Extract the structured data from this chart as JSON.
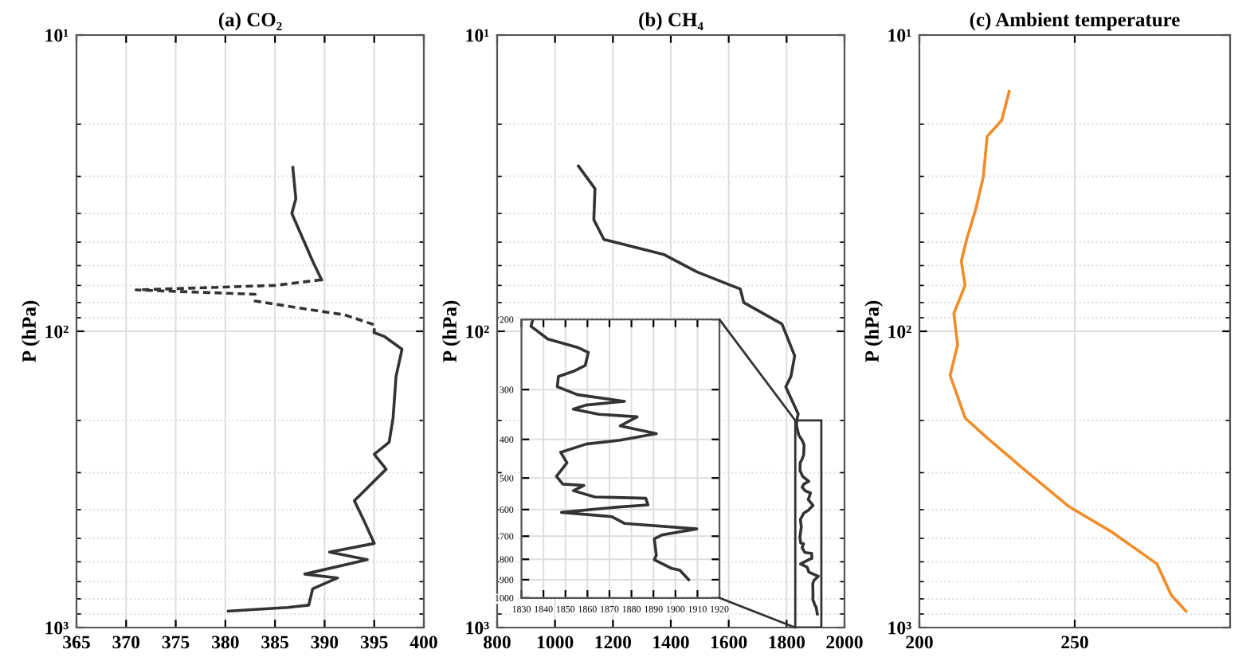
{
  "chart_data": [
    {
      "type": "line",
      "title": "(a) CO₂",
      "ylabel": "P (hPa)",
      "log": "y",
      "grid": true,
      "xlim": [
        365,
        400
      ],
      "xticks": [
        365,
        370,
        375,
        380,
        385,
        390,
        395,
        400
      ],
      "ylim": [
        1000,
        10
      ],
      "yticks": [
        {
          "value": 10,
          "label": "10¹"
        },
        {
          "value": 100,
          "label": "10²"
        },
        {
          "value": 1000,
          "label": "10³"
        }
      ],
      "series": [
        {
          "color": "#333333",
          "line_style": "solid",
          "x": [
            386.8,
            387.1,
            386.7,
            388.8,
            389.7
          ],
          "values": [
            28,
            35.7,
            40,
            58,
            67
          ]
        },
        {
          "color": "#333333",
          "line_style": "dashed",
          "x": [
            389.7,
            385,
            371,
            383,
            383,
            388,
            392,
            395,
            395
          ],
          "values": [
            67,
            70,
            72.5,
            75,
            79,
            84,
            88,
            95,
            101
          ]
        },
        {
          "color": "#333333",
          "line_style": "solid",
          "x": [
            395,
            396,
            397.8,
            397.2,
            396.9,
            396.5,
            395,
            396.2,
            393,
            394,
            395,
            390.5,
            394.3,
            388,
            391.3,
            388.8,
            388.4,
            386.3,
            380.3
          ],
          "values": [
            101,
            104,
            115,
            142,
            196,
            237,
            260,
            292,
            373,
            438,
            520,
            556,
            590,
            660,
            680,
            740,
            840,
            855,
            880
          ]
        }
      ]
    },
    {
      "type": "line",
      "title": "(b) CH₄",
      "ylabel": "P (hPa)",
      "log": "y",
      "grid": true,
      "xlim": [
        800,
        2000
      ],
      "xticks": [
        800,
        1000,
        1200,
        1400,
        1600,
        1800,
        2000
      ],
      "ylim": [
        1000,
        10
      ],
      "yticks": [
        {
          "value": 10,
          "label": "10¹"
        },
        {
          "value": 100,
          "label": "10²"
        },
        {
          "value": 1000,
          "label": "10³"
        }
      ],
      "series": [
        {
          "color": "#333333",
          "line_style": "solid",
          "x": [
            1081,
            1138,
            1134,
            1169,
            1375,
            1490,
            1608,
            1640,
            1652,
            1784,
            1828,
            1815,
            1797,
            1840,
            1835.2,
            1834.3,
            1842,
            1855.5,
            1860.4,
            1859,
            1853.6,
            1846.8,
            1846.3,
            1855.5,
            1876.8,
            1859.4,
            1853.6,
            1865.2,
            1882.6,
            1874.9,
            1891.3,
            1874.9,
            1859.4,
            1847.8,
            1850.7,
            1845.9,
            1848.8,
            1858.4,
            1853.6,
            1863.3,
            1886.5,
            1887.5,
            1873,
            1848.2,
            1871,
            1876.8,
            1909.7,
            1894.2,
            1890.4,
            1891.3,
            1890.4,
            1898,
            1902,
            1906
          ],
          "values": [
            27.7,
            33,
            42,
            49,
            55,
            63,
            70,
            72,
            80,
            94.5,
            121,
            142,
            154,
            190,
            200,
            208,
            224,
            235,
            242,
            261,
            270,
            278,
            295,
            309,
            321,
            328,
            336,
            346,
            351,
            370,
            387,
            402,
            411,
            431,
            458,
            495,
            518,
            522,
            538,
            558,
            562,
            584,
            592,
            610,
            625,
            650,
            671,
            694,
            711,
            781,
            802,
            842,
            852,
            900
          ]
        }
      ]
    },
    {
      "type": "line",
      "title": "(c) Ambient temperature",
      "ylabel": "P (hPa)",
      "log": "y",
      "grid": true,
      "xlim": [
        200,
        300
      ],
      "xticks": [
        200,
        250
      ],
      "ylim": [
        1000,
        10
      ],
      "yticks": [
        {
          "value": 10,
          "label": "10¹"
        },
        {
          "value": 100,
          "label": "10²"
        },
        {
          "value": 1000,
          "label": "10³"
        }
      ],
      "series": [
        {
          "color": "#f28c28",
          "line_style": "solid",
          "x": [
            228.9,
            226.5,
            221.8,
            220.6,
            218.2,
            215.2,
            213.5,
            214.7,
            211.1,
            212.3,
            209.9,
            212.3,
            214.7,
            221.8,
            233.6,
            247.9,
            262.1,
            276.4,
            281.1,
            285.8
          ],
          "values": [
            15.5,
            19.4,
            22,
            30,
            38.5,
            49,
            58,
            70,
            87,
            111,
            141,
            166,
            196,
            229,
            292,
            389,
            477,
            609,
            778,
            880
          ]
        }
      ]
    },
    {
      "type": "line",
      "log": "y",
      "grid": true,
      "xlim": [
        1830,
        1920
      ],
      "xticks": [
        1830,
        1840,
        1850,
        1860,
        1870,
        1880,
        1890,
        1900,
        1910,
        1920
      ],
      "ylim": [
        1000,
        200
      ],
      "yticks": [
        200,
        300,
        400,
        500,
        600,
        700,
        800,
        900,
        1000
      ],
      "series": [
        {
          "color": "#333333",
          "line_style": "solid",
          "x": [
            1835.2,
            1834.3,
            1842,
            1855.5,
            1860.4,
            1859,
            1853.6,
            1846.8,
            1846.3,
            1855.5,
            1876.8,
            1859.4,
            1853.6,
            1865.2,
            1882.6,
            1874.9,
            1891.3,
            1874.9,
            1859.4,
            1847.8,
            1850.7,
            1845.9,
            1848.8,
            1858.4,
            1853.6,
            1863.3,
            1886.5,
            1887.5,
            1873,
            1848.2,
            1871,
            1876.8,
            1909.7,
            1894.2,
            1890.4,
            1891.3,
            1890.4,
            1898,
            1902,
            1906
          ],
          "values": [
            200,
            208,
            224,
            235,
            242,
            261,
            270,
            278,
            295,
            309,
            321,
            328,
            336,
            346,
            351,
            370,
            387,
            402,
            411,
            431,
            458,
            495,
            518,
            522,
            538,
            558,
            562,
            584,
            592,
            610,
            625,
            650,
            671,
            694,
            711,
            781,
            802,
            842,
            852,
            900
          ]
        }
      ]
    }
  ]
}
